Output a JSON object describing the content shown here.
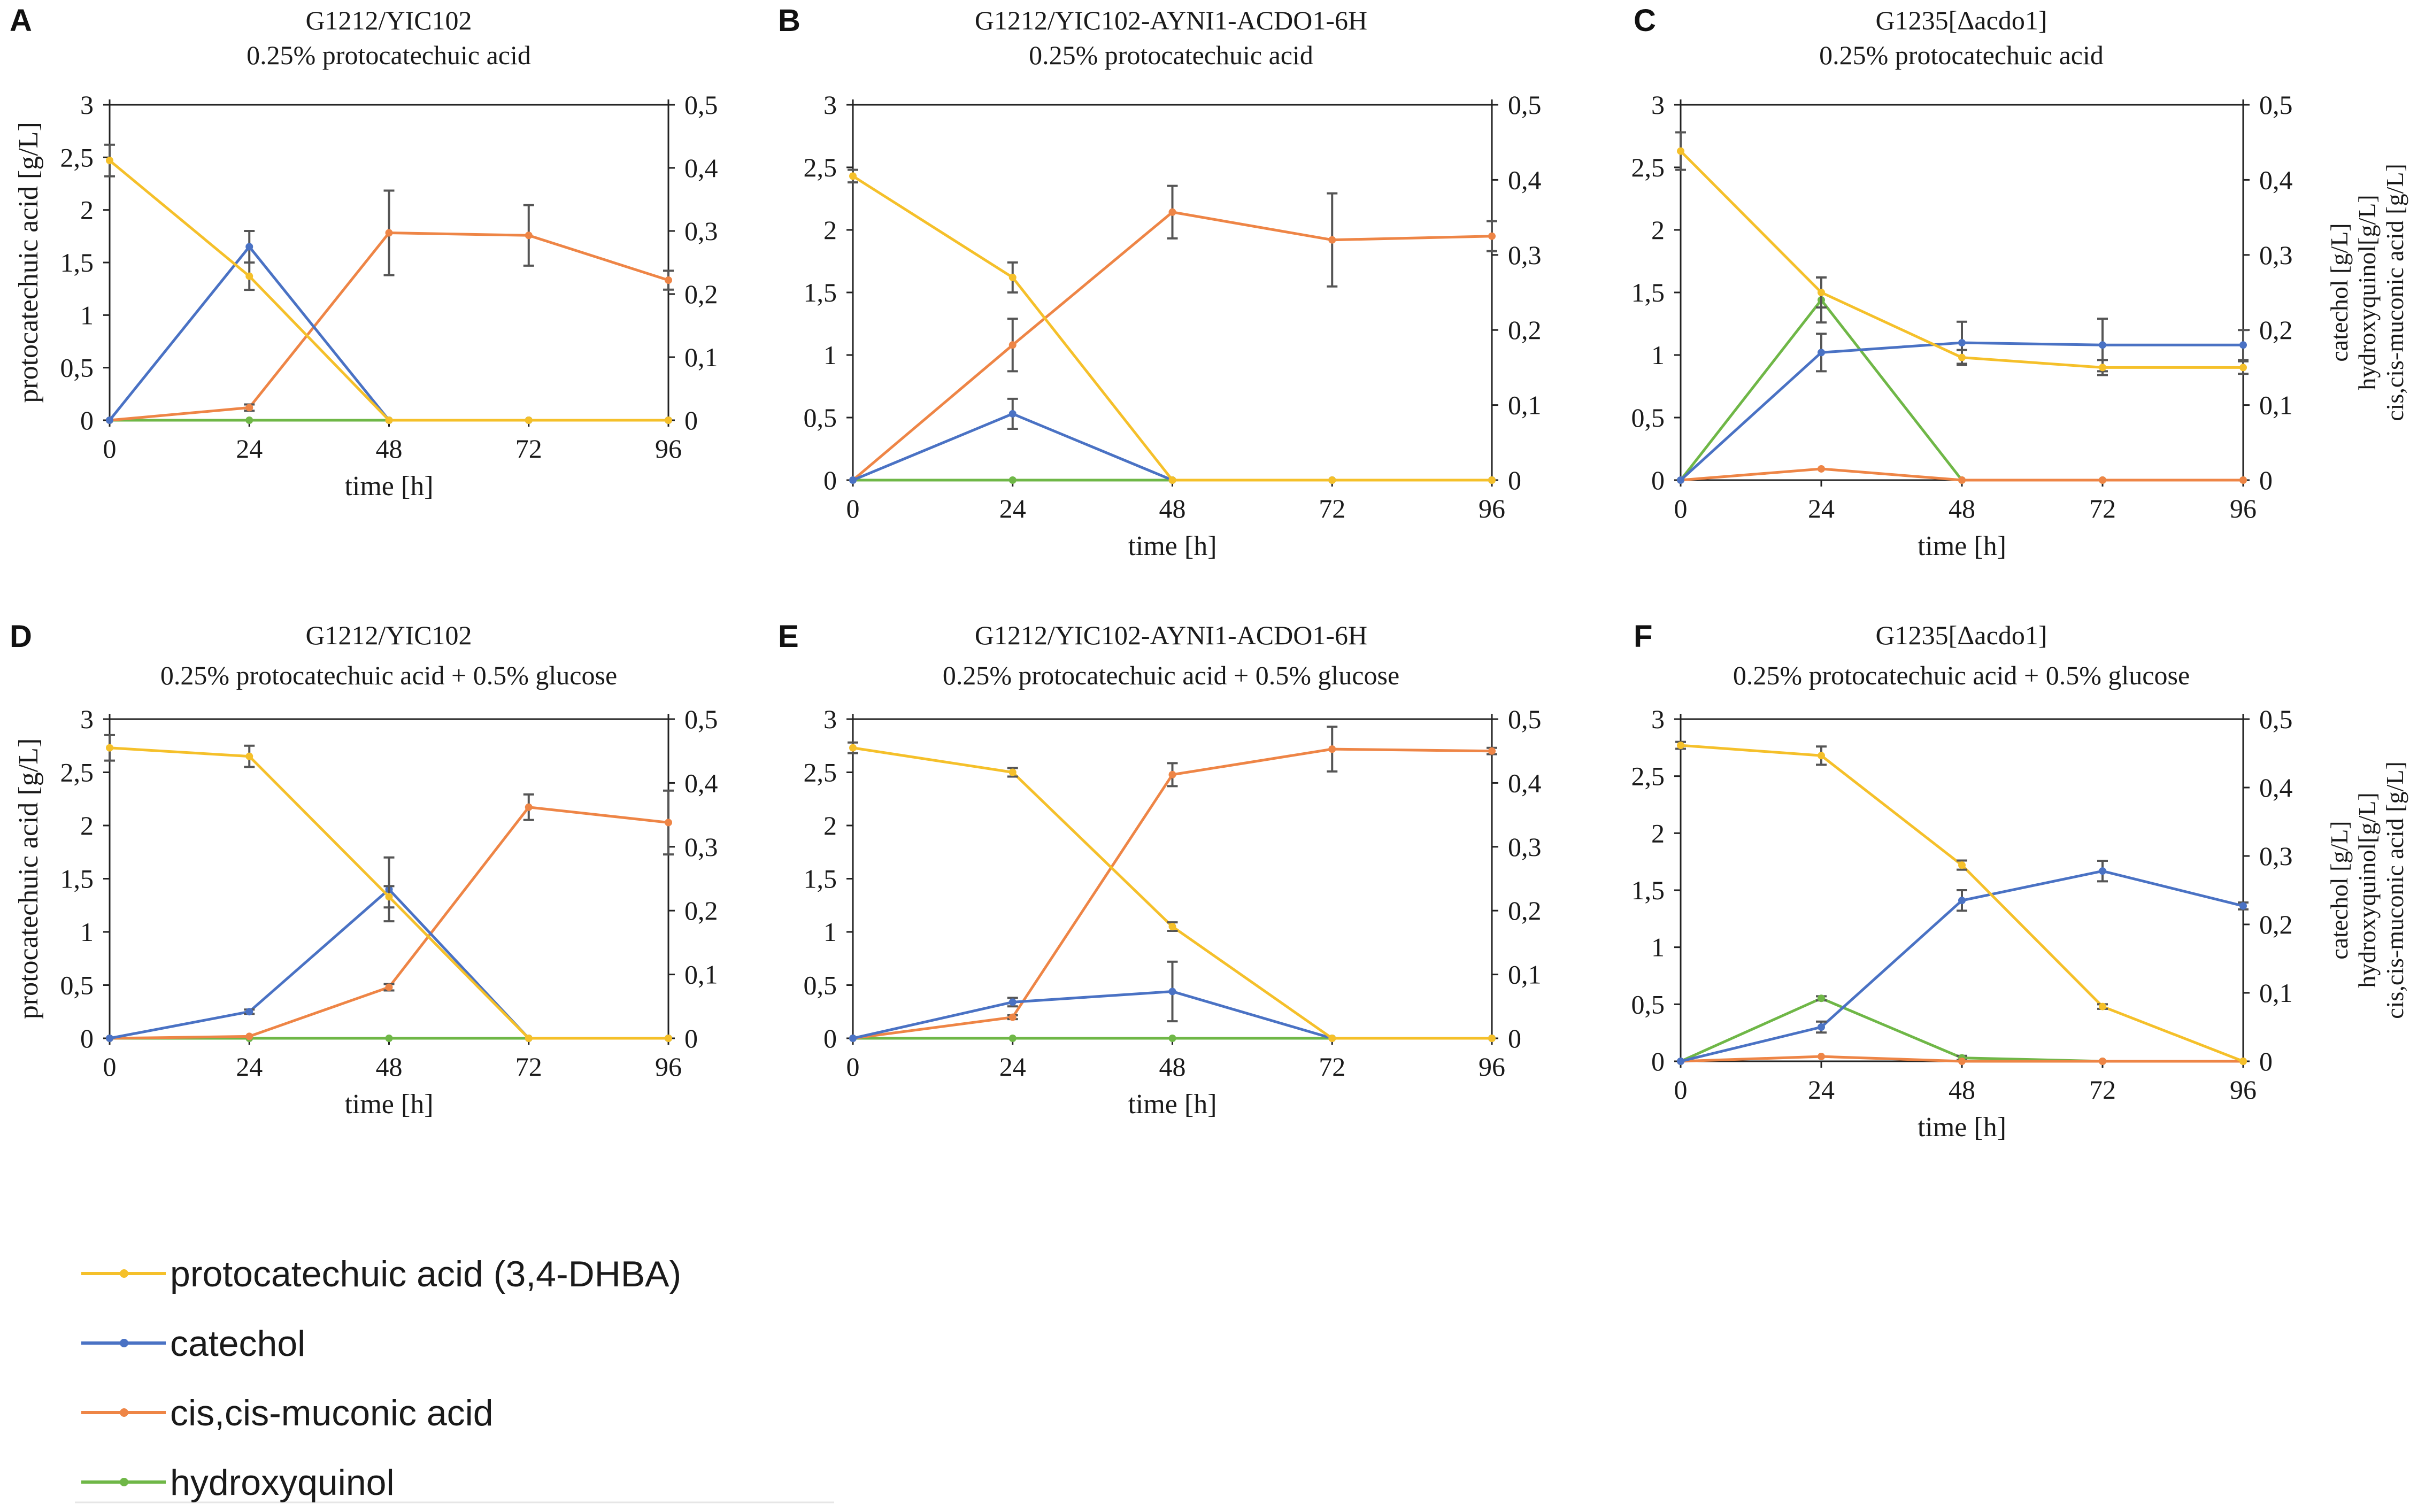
{
  "chart_data": [
    {
      "panel": "A",
      "type": "line",
      "title": [
        "G1212/YIC102",
        "0.25% protocatechuic acid"
      ],
      "xlabel": "time [h]",
      "ylabel": "protocatechuic acid [g/L]",
      "y2label": [],
      "x": [
        0,
        24,
        48,
        72,
        96
      ],
      "xticks": [
        "0",
        "24",
        "48",
        "72",
        "96"
      ],
      "ylim": [
        0,
        3
      ],
      "yticks": [
        "0",
        "0,5",
        "1",
        "1,5",
        "2",
        "2,5",
        "3"
      ],
      "y2lim": [
        0,
        0.5
      ],
      "y2ticks": [
        "0",
        "0,1",
        "0,2",
        "0,3",
        "0,4",
        "0,5"
      ],
      "series": [
        {
          "name": "protocatechuic acid (3,4-DHBA)",
          "color": "#F5C02A",
          "axis": "left",
          "values": [
            2.47,
            1.37,
            0.0,
            0.0,
            0.0
          ],
          "err": [
            0.15,
            0.13,
            0.0,
            0.0,
            0.0
          ]
        },
        {
          "name": "catechol",
          "color": "#4A72C4",
          "axis": "left",
          "values": [
            0.0,
            1.65,
            0.0,
            0.0,
            0.0
          ],
          "err": [
            0.0,
            0.15,
            0.0,
            0.0,
            0.0
          ]
        },
        {
          "name": "cis,cis-muconic acid",
          "color": "#EE8546",
          "axis": "right",
          "values": [
            0.0,
            0.02,
            0.297,
            0.293,
            0.222
          ],
          "err": [
            0.0,
            0.005,
            0.067,
            0.048,
            0.015
          ]
        },
        {
          "name": "hydroxyquinol",
          "color": "#6FB747",
          "axis": "left",
          "values": [
            0.0,
            0.0,
            0.0,
            0.0,
            0.0
          ],
          "err": [
            0,
            0,
            0,
            0,
            0
          ]
        }
      ]
    },
    {
      "panel": "B",
      "type": "line",
      "title": [
        "G1212/YIC102-AYNI1-ACDO1-6H",
        "0.25% protocatechuic acid"
      ],
      "xlabel": "time [h]",
      "ylabel": "",
      "y2label": [],
      "x": [
        0,
        24,
        48,
        72,
        96
      ],
      "xticks": [
        "0",
        "24",
        "48",
        "72",
        "96"
      ],
      "ylim": [
        0,
        3
      ],
      "yticks": [
        "0",
        "0,5",
        "1",
        "1,5",
        "2",
        "2,5",
        "3"
      ],
      "y2lim": [
        0,
        0.5
      ],
      "y2ticks": [
        "0",
        "0,1",
        "0,2",
        "0,3",
        "0,4",
        "0,5"
      ],
      "series": [
        {
          "name": "protocatechuic acid (3,4-DHBA)",
          "color": "#F5C02A",
          "axis": "left",
          "values": [
            2.43,
            1.62,
            0.0,
            0.0,
            0.0
          ],
          "err": [
            0.05,
            0.12,
            0.0,
            0.0,
            0.0
          ]
        },
        {
          "name": "catechol",
          "color": "#4A72C4",
          "axis": "left",
          "values": [
            0.0,
            0.53,
            0.0,
            0.0,
            0.0
          ],
          "err": [
            0.0,
            0.12,
            0.0,
            0.0,
            0.0
          ]
        },
        {
          "name": "cis,cis-muconic acid",
          "color": "#EE8546",
          "axis": "right",
          "values": [
            0.0,
            0.18,
            0.357,
            0.32,
            0.325
          ],
          "err": [
            0.0,
            0.035,
            0.035,
            0.062,
            0.02
          ]
        },
        {
          "name": "hydroxyquinol",
          "color": "#6FB747",
          "axis": "left",
          "values": [
            0.0,
            0.0,
            0.0,
            0.0,
            0.0
          ],
          "err": [
            0,
            0,
            0,
            0,
            0
          ]
        }
      ]
    },
    {
      "panel": "C",
      "type": "line",
      "title": [
        "G1235[Δacdo1]",
        "0.25% protocatechuic acid"
      ],
      "xlabel": "time [h]",
      "ylabel": "",
      "y2label": [
        "catechol [g/L]",
        "hydroxyquinol[g/L]",
        "cis,cis-muconic acid [g/L]"
      ],
      "x": [
        0,
        24,
        48,
        72,
        96
      ],
      "xticks": [
        "0",
        "24",
        "48",
        "72",
        "96"
      ],
      "ylim": [
        0,
        3
      ],
      "yticks": [
        "0",
        "0,5",
        "1",
        "1,5",
        "2",
        "2,5",
        "3"
      ],
      "y2lim": [
        0,
        0.5
      ],
      "y2ticks": [
        "0",
        "0,1",
        "0,2",
        "0,3",
        "0,4",
        "0,5"
      ],
      "series": [
        {
          "name": "protocatechuic acid (3,4-DHBA)",
          "color": "#F5C02A",
          "axis": "left",
          "values": [
            2.63,
            1.5,
            0.98,
            0.9,
            0.9
          ],
          "err": [
            0.15,
            0.12,
            0.06,
            0.06,
            0.05
          ]
        },
        {
          "name": "catechol",
          "color": "#4A72C4",
          "axis": "right",
          "values": [
            0.0,
            0.17,
            0.183,
            0.18,
            0.18
          ],
          "err": [
            0.0,
            0.025,
            0.028,
            0.035,
            0.02
          ]
        },
        {
          "name": "cis,cis-muconic acid",
          "color": "#EE8546",
          "axis": "right",
          "values": [
            0.0,
            0.015,
            0.0,
            0.0,
            0.0
          ],
          "err": [
            0.0,
            0.0,
            0.0,
            0.0,
            0.0
          ]
        },
        {
          "name": "hydroxyquinol",
          "color": "#6FB747",
          "axis": "right",
          "values": [
            0.0,
            0.24,
            0.0,
            0.0,
            0.0
          ],
          "err": [
            0.0,
            0.03,
            0.0,
            0.0,
            0.0
          ]
        }
      ]
    },
    {
      "panel": "D",
      "type": "line",
      "title": [
        "G1212/YIC102",
        "0.25% protocatechuic acid + 0.5% glucose"
      ],
      "xlabel": "time [h]",
      "ylabel": "protocatechuic acid [g/L]",
      "y2label": [],
      "x": [
        0,
        24,
        48,
        72,
        96
      ],
      "xticks": [
        "0",
        "24",
        "48",
        "72",
        "96"
      ],
      "ylim": [
        0,
        3
      ],
      "yticks": [
        "0",
        "0,5",
        "1",
        "1,5",
        "2",
        "2,5",
        "3"
      ],
      "y2lim": [
        0,
        0.5
      ],
      "y2ticks": [
        "0",
        "0,1",
        "0,2",
        "0,3",
        "0,4",
        "0,5"
      ],
      "series": [
        {
          "name": "protocatechuic acid (3,4-DHBA)",
          "color": "#F5C02A",
          "axis": "left",
          "values": [
            2.73,
            2.65,
            1.33,
            0.0,
            0.0
          ],
          "err": [
            0.12,
            0.1,
            0.1,
            0.0,
            0.0
          ]
        },
        {
          "name": "catechol",
          "color": "#4A72C4",
          "axis": "left",
          "values": [
            0.0,
            0.25,
            1.4,
            0.0,
            0.0
          ],
          "err": [
            0.0,
            0.02,
            0.3,
            0.0,
            0.0
          ]
        },
        {
          "name": "cis,cis-muconic acid",
          "color": "#EE8546",
          "axis": "right",
          "values": [
            0.0,
            0.003,
            0.08,
            0.362,
            0.338
          ],
          "err": [
            0.0,
            0.0,
            0.005,
            0.02,
            0.05
          ]
        },
        {
          "name": "hydroxyquinol",
          "color": "#6FB747",
          "axis": "left",
          "values": [
            0.0,
            0.0,
            0.0,
            0.0,
            0.0
          ],
          "err": [
            0,
            0,
            0,
            0,
            0
          ]
        }
      ]
    },
    {
      "panel": "E",
      "type": "line",
      "title": [
        "G1212/YIC102-AYNI1-ACDO1-6H",
        "0.25% protocatechuic acid + 0.5% glucose"
      ],
      "xlabel": "time [h]",
      "ylabel": "",
      "y2label": [],
      "x": [
        0,
        24,
        48,
        72,
        96
      ],
      "xticks": [
        "0",
        "24",
        "48",
        "72",
        "96"
      ],
      "ylim": [
        0,
        3
      ],
      "yticks": [
        "0",
        "0,5",
        "1",
        "1,5",
        "2",
        "2,5",
        "3"
      ],
      "y2lim": [
        0,
        0.5
      ],
      "y2ticks": [
        "0",
        "0,1",
        "0,2",
        "0,3",
        "0,4",
        "0,5"
      ],
      "series": [
        {
          "name": "protocatechuic acid (3,4-DHBA)",
          "color": "#F5C02A",
          "axis": "left",
          "values": [
            2.73,
            2.5,
            1.05,
            0.0,
            0.0
          ],
          "err": [
            0.05,
            0.04,
            0.04,
            0.0,
            0.0
          ]
        },
        {
          "name": "catechol",
          "color": "#4A72C4",
          "axis": "left",
          "values": [
            0.0,
            0.34,
            0.44,
            0.0,
            0.0
          ],
          "err": [
            0.0,
            0.04,
            0.28,
            0.0,
            0.0
          ]
        },
        {
          "name": "cis,cis-muconic acid",
          "color": "#EE8546",
          "axis": "right",
          "values": [
            0.0,
            0.033,
            0.413,
            0.453,
            0.45
          ],
          "err": [
            0.0,
            0.003,
            0.018,
            0.035,
            0.005
          ]
        },
        {
          "name": "hydroxyquinol",
          "color": "#6FB747",
          "axis": "left",
          "values": [
            0.0,
            0.0,
            0.0,
            0.0,
            0.0
          ],
          "err": [
            0,
            0,
            0,
            0,
            0
          ]
        }
      ]
    },
    {
      "panel": "F",
      "type": "line",
      "title": [
        "G1235[Δacdo1]",
        "0.25% protocatechuic acid + 0.5% glucose"
      ],
      "xlabel": "time [h]",
      "ylabel": "",
      "y2label": [
        "catechol [g/L]",
        "hydroxyquinol[g/L]",
        "cis,cis-muconic acid [g/L]"
      ],
      "x": [
        0,
        24,
        48,
        72,
        96
      ],
      "xticks": [
        "0",
        "24",
        "48",
        "72",
        "96"
      ],
      "ylim": [
        0,
        3
      ],
      "yticks": [
        "0",
        "0,5",
        "1",
        "1,5",
        "2",
        "2,5",
        "3"
      ],
      "y2lim": [
        0,
        0.5
      ],
      "y2ticks": [
        "0",
        "0,1",
        "0,2",
        "0,3",
        "0,4",
        "0,5"
      ],
      "series": [
        {
          "name": "protocatechuic acid (3,4-DHBA)",
          "color": "#F5C02A",
          "axis": "left",
          "values": [
            2.77,
            2.68,
            1.72,
            0.48,
            0.0
          ],
          "err": [
            0.03,
            0.08,
            0.04,
            0.02,
            0.0
          ]
        },
        {
          "name": "catechol",
          "color": "#4A72C4",
          "axis": "right",
          "values": [
            0.0,
            0.05,
            0.235,
            0.278,
            0.227
          ],
          "err": [
            0.0,
            0.008,
            0.015,
            0.015,
            0.005
          ]
        },
        {
          "name": "cis,cis-muconic acid",
          "color": "#EE8546",
          "axis": "right",
          "values": [
            0.0,
            0.007,
            0.0,
            0.0,
            0.0
          ],
          "err": [
            0.0,
            0.0,
            0.0,
            0.0,
            0.0
          ]
        },
        {
          "name": "hydroxyquinol",
          "color": "#6FB747",
          "axis": "right",
          "values": [
            0.0,
            0.092,
            0.005,
            0.0,
            0.0
          ],
          "err": [
            0.0,
            0.003,
            0.003,
            0.0,
            0.0
          ]
        }
      ]
    }
  ],
  "legend": [
    {
      "label": "protocatechuic acid (3,4-DHBA)",
      "color": "#F5C02A"
    },
    {
      "label": "catechol",
      "color": "#4A72C4"
    },
    {
      "label": "cis,cis-muconic acid",
      "color": "#EE8546"
    },
    {
      "label": "hydroxyquinol",
      "color": "#6FB747"
    }
  ]
}
